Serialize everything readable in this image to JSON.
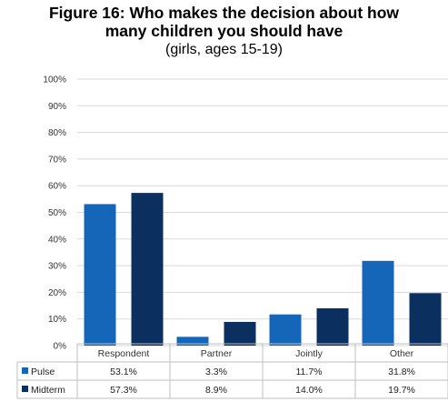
{
  "chart_data": {
    "type": "bar",
    "title_line1": "Figure 16: Who makes the decision about how",
    "title_line2": "many children you should have",
    "subtitle": "(girls, ages 15-19)",
    "categories": [
      "Respondent",
      "Partner",
      "Jointly",
      "Other"
    ],
    "series": [
      {
        "name": "Pulse",
        "values": [
          53.1,
          3.3,
          11.7,
          31.8
        ],
        "labels": [
          "53.1%",
          "3.3%",
          "11.7%",
          "31.8%"
        ],
        "color": "#1565B8"
      },
      {
        "name": "Midterm",
        "values": [
          57.3,
          8.9,
          14.0,
          19.7
        ],
        "labels": [
          "57.3%",
          "8.9%",
          "14.0%",
          "19.7%"
        ],
        "color": "#0B2F5E"
      }
    ],
    "ylim": [
      0,
      100
    ],
    "yticks": [
      "0%",
      "10%",
      "20%",
      "30%",
      "40%",
      "50%",
      "60%",
      "70%",
      "80%",
      "90%",
      "100%"
    ],
    "grid": true,
    "data_table": true
  }
}
